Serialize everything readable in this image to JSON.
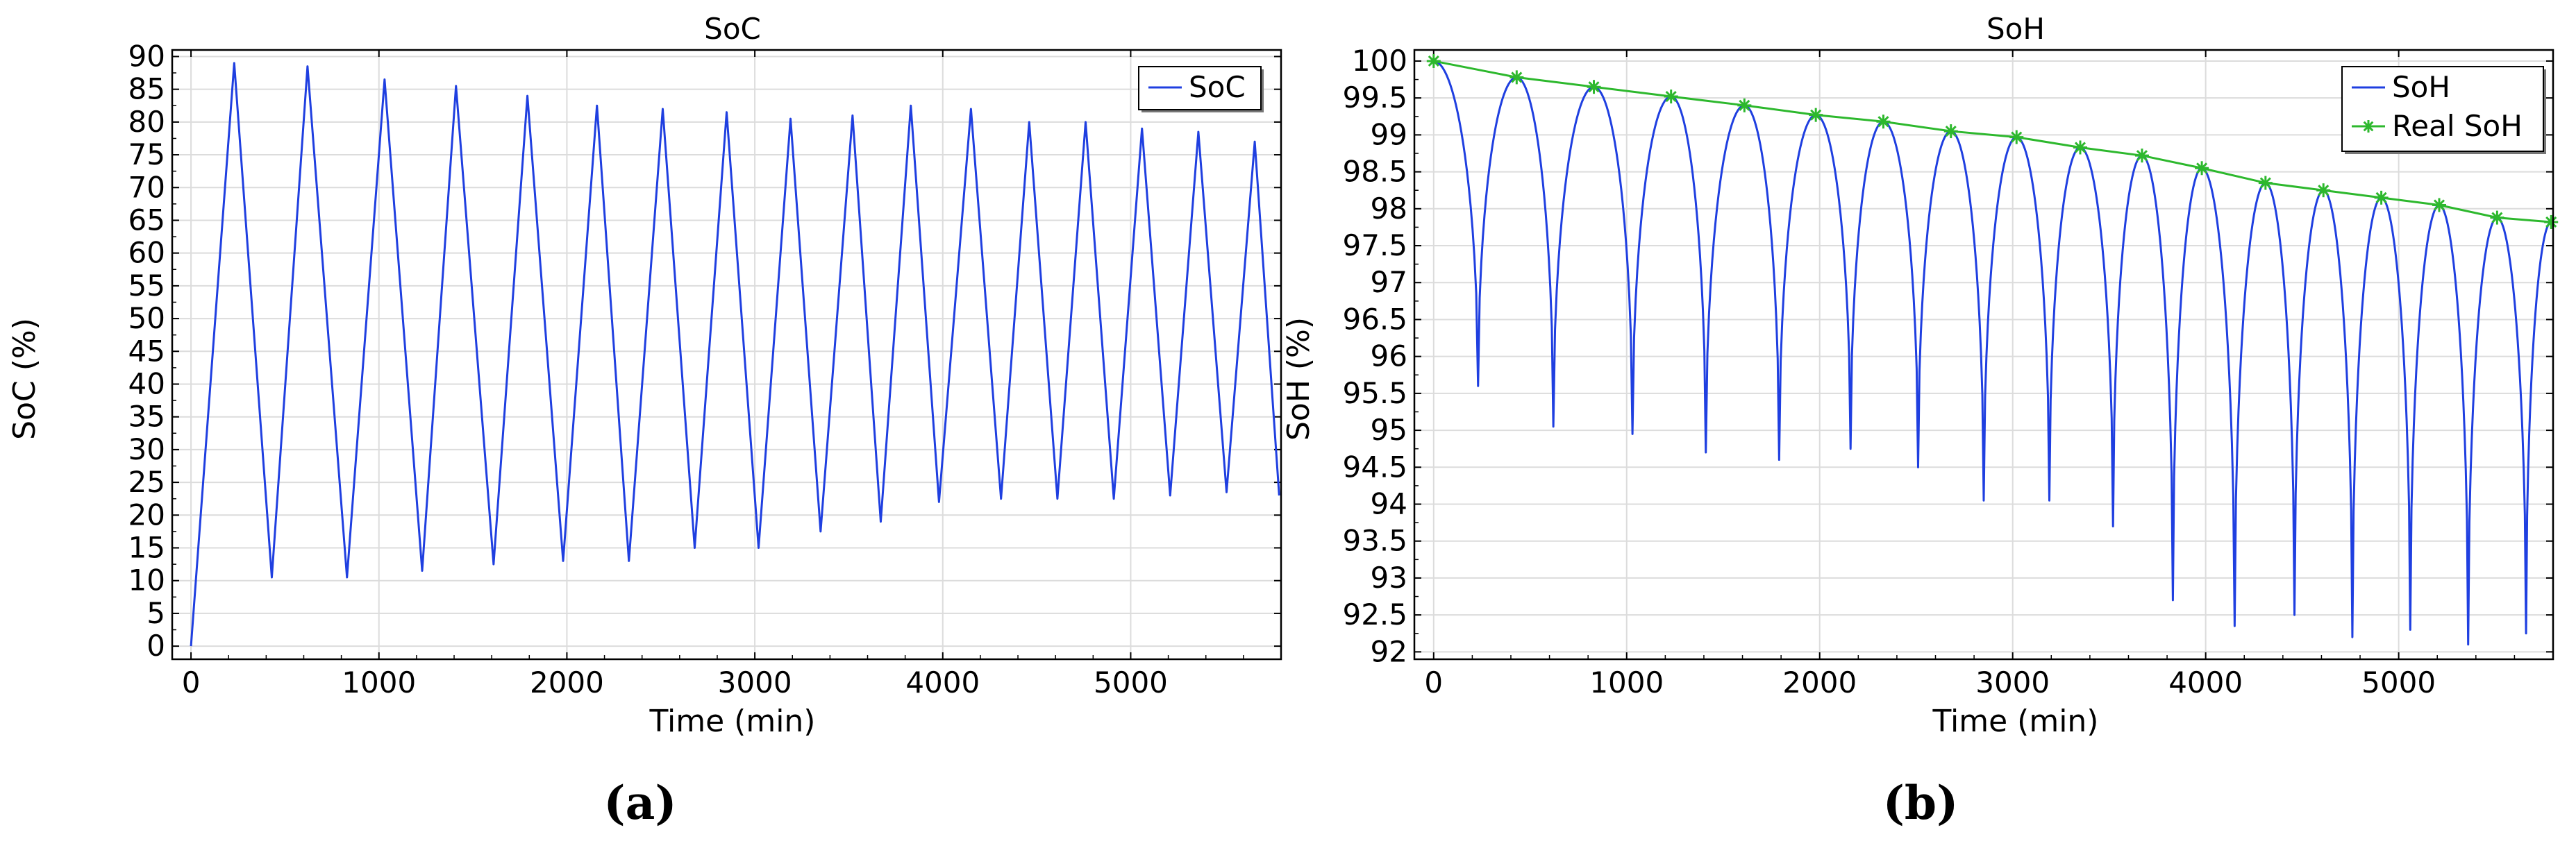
{
  "chart_data": [
    {
      "type": "line",
      "panel_label": "(a)",
      "title": "SoC",
      "xlabel": "Time (min)",
      "ylabel": "SoC (%)",
      "xlim": [
        -100,
        5800
      ],
      "ylim": [
        -2,
        91
      ],
      "x_ticks": [
        0,
        1000,
        2000,
        3000,
        4000,
        5000
      ],
      "y_ticks": [
        0,
        5,
        10,
        15,
        20,
        25,
        30,
        35,
        40,
        45,
        50,
        55,
        60,
        65,
        70,
        75,
        80,
        85,
        90
      ],
      "grid": true,
      "legend": {
        "position": "top-right",
        "entries": [
          "SoC"
        ]
      },
      "series": [
        {
          "name": "SoC",
          "color": "#1f3fe0",
          "marker": "none",
          "x": [
            0,
            230,
            430,
            620,
            830,
            1030,
            1230,
            1410,
            1610,
            1790,
            1980,
            2160,
            2330,
            2510,
            2680,
            2850,
            3020,
            3190,
            3350,
            3520,
            3670,
            3830,
            3980,
            4150,
            4310,
            4460,
            4610,
            4760,
            4910,
            5060,
            5210,
            5360,
            5510,
            5660,
            5790
          ],
          "y": [
            0,
            89,
            10.5,
            88.5,
            10.5,
            86.5,
            11.5,
            85.5,
            12.5,
            84,
            13,
            82.5,
            13,
            82,
            15,
            81.5,
            15,
            80.5,
            17.5,
            81,
            19,
            82.5,
            22,
            82,
            22.5,
            80,
            22.5,
            80,
            22.5,
            79,
            23,
            78.5,
            23.5,
            77,
            23
          ]
        }
      ]
    },
    {
      "type": "line",
      "panel_label": "(b)",
      "title": "SoH",
      "xlabel": "Time (min)",
      "ylabel": "SoH (%)",
      "xlim": [
        -100,
        5800
      ],
      "ylim": [
        91.9,
        100.15
      ],
      "x_ticks": [
        0,
        1000,
        2000,
        3000,
        4000,
        5000
      ],
      "y_ticks": [
        "92",
        "92.5",
        "93",
        "93.5",
        "94",
        "94.5",
        "95",
        "95.5",
        "96",
        "96.5",
        "97",
        "97.5",
        "98",
        "98.5",
        "99",
        "99.5",
        "100"
      ],
      "grid": true,
      "legend": {
        "position": "top-right",
        "entries": [
          "SoH",
          "Real SoH"
        ]
      },
      "series": [
        {
          "name": "SoH",
          "color": "#1f3fe0",
          "marker": "none",
          "peaks_x": [
            0,
            430,
            830,
            1230,
            1610,
            1980,
            2330,
            2680,
            3020,
            3350,
            3670,
            3980,
            4310,
            4610,
            4910,
            5210,
            5510,
            5790
          ],
          "peaks_y": [
            100,
            99.78,
            99.65,
            99.52,
            99.4,
            99.27,
            99.18,
            99.05,
            98.97,
            98.83,
            98.72,
            98.55,
            98.35,
            98.25,
            98.15,
            98.05,
            97.88,
            97.82
          ],
          "troughs_x": [
            230,
            620,
            1030,
            1410,
            1790,
            2160,
            2510,
            2850,
            3190,
            3520,
            3830,
            4150,
            4460,
            4760,
            5060,
            5360,
            5660
          ],
          "troughs_y": [
            95.6,
            95.05,
            94.95,
            94.7,
            94.6,
            94.75,
            94.5,
            94.05,
            94.05,
            93.7,
            92.7,
            92.35,
            92.5,
            92.2,
            92.3,
            92.1,
            92.25
          ]
        },
        {
          "name": "Real SoH",
          "color": "#2db82d",
          "marker": "asterisk",
          "x": [
            0,
            430,
            830,
            1230,
            1610,
            1980,
            2330,
            2680,
            3020,
            3350,
            3670,
            3980,
            4310,
            4610,
            4910,
            5210,
            5510,
            5790
          ],
          "y": [
            100,
            99.78,
            99.65,
            99.52,
            99.4,
            99.27,
            99.18,
            99.05,
            98.97,
            98.83,
            98.72,
            98.55,
            98.35,
            98.25,
            98.15,
            98.05,
            97.88,
            97.82
          ]
        }
      ]
    }
  ]
}
